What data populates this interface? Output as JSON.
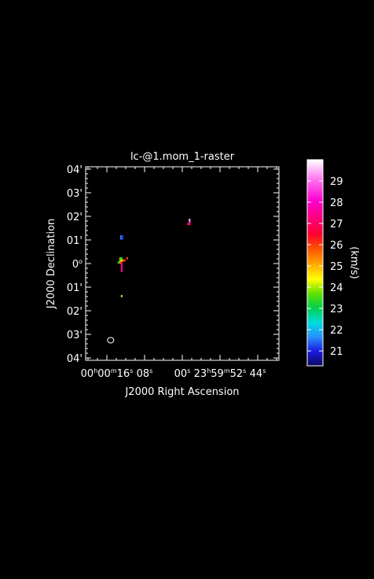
{
  "chart_data": {
    "type": "heatmap",
    "title": "lc-@1.mom_1-raster",
    "xlabel": "J2000 Right Ascension",
    "ylabel": "J2000 Declination",
    "colorbar_label": "(km/s)",
    "colorbar_range": [
      20.3,
      30.0
    ],
    "colorbar_ticks": [
      "21",
      "22",
      "23",
      "24",
      "25",
      "26",
      "27",
      "28",
      "29"
    ],
    "colorbar_tick_values": [
      21,
      22,
      23,
      24,
      25,
      26,
      27,
      28,
      29
    ],
    "x_ticks": [
      {
        "h": "00",
        "m": "00",
        "s": "16",
        "sec": 16
      },
      {
        "s": "08",
        "sec": 8
      },
      {
        "s": "00",
        "sec": 0
      },
      {
        "h": "23",
        "m": "59",
        "s": "52",
        "sec": -8
      },
      {
        "s": "44",
        "sec": -16
      }
    ],
    "x_range_sec": [
      20.5,
      -20.5
    ],
    "y_ticks": [
      {
        "label": "04'",
        "value": 4
      },
      {
        "label": "03'",
        "value": 3
      },
      {
        "label": "02'",
        "value": 2
      },
      {
        "label": "01'",
        "value": 1
      },
      {
        "label": "0",
        "value": 0
      },
      {
        "label": "01'",
        "value": -1
      },
      {
        "label": "02'",
        "value": -2
      },
      {
        "label": "03'",
        "value": -3
      },
      {
        "label": "04'",
        "value": -4
      }
    ],
    "y_range_arcmin": [
      -4.1,
      4.1
    ],
    "pixel_size": {
      "dra_sec": 0.36,
      "ddec_arcmin": 0.09
    },
    "pixels": [
      {
        "ra": 13.0,
        "dec": 1.15,
        "v": 21.6
      },
      {
        "ra": 13.0,
        "dec": 1.06,
        "v": 21.6
      },
      {
        "ra": 12.7,
        "dec": 1.15,
        "v": 21.2
      },
      {
        "ra": 12.7,
        "dec": 1.06,
        "v": 21.2
      },
      {
        "ra": 13.2,
        "dec": 0.22,
        "v": 23.6
      },
      {
        "ra": 12.85,
        "dec": 0.22,
        "v": 23.4
      },
      {
        "ra": 13.2,
        "dec": 0.13,
        "v": 23.8
      },
      {
        "ra": 12.85,
        "dec": 0.13,
        "v": 24.2
      },
      {
        "ra": 13.55,
        "dec": 0.04,
        "v": 23.2
      },
      {
        "ra": 13.2,
        "dec": 0.04,
        "v": 25.2
      },
      {
        "ra": 12.85,
        "dec": 0.04,
        "v": 26.6
      },
      {
        "ra": 12.5,
        "dec": 0.13,
        "v": 25.6
      },
      {
        "ra": 12.15,
        "dec": 0.13,
        "v": 26.2
      },
      {
        "ra": 11.7,
        "dec": 0.22,
        "v": 25.9
      },
      {
        "ra": 12.85,
        "dec": -0.05,
        "v": 27.2
      },
      {
        "ra": 12.85,
        "dec": -0.14,
        "v": 27.5
      },
      {
        "ra": 12.85,
        "dec": -0.23,
        "v": 27.8
      },
      {
        "ra": 12.85,
        "dec": -0.32,
        "v": 27.6
      },
      {
        "ra": 12.85,
        "dec": -1.38,
        "v": 24.1
      },
      {
        "ra": -1.55,
        "dec": 1.85,
        "v": 29.6
      },
      {
        "ra": -1.55,
        "dec": 1.76,
        "v": 28.8
      },
      {
        "ra": -1.2,
        "dec": 1.67,
        "v": 27.2
      },
      {
        "ra": -1.55,
        "dec": 1.67,
        "v": 27.0
      }
    ],
    "beam": {
      "ra": 15.2,
      "dec": -3.25,
      "major_arcmin": 0.28
    },
    "grid": false
  }
}
